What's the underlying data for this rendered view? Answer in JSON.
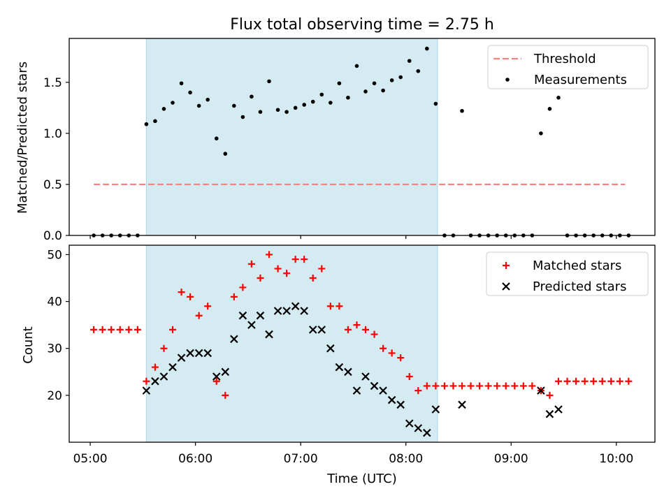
{
  "chart_data": [
    {
      "type": "scatter",
      "title": "Flux total observing time = 2.75 h",
      "xlabel": "",
      "ylabel": "Matched/Predicted stars",
      "xlim": [
        "04:48",
        "10:22"
      ],
      "ylim": [
        0,
        1.93
      ],
      "yticks": [
        "0.0",
        "0.5",
        "1.0",
        "1.5"
      ],
      "shaded_interval": [
        "05:32",
        "08:18"
      ],
      "legend": {
        "position": "top-right",
        "entries": [
          "Threshold",
          "Measurements"
        ]
      },
      "threshold": {
        "name": "Threshold",
        "y": 0.5,
        "x": [
          "05:02",
          "10:05"
        ],
        "color": "#ff7f7f",
        "style": "dashed"
      },
      "series": [
        {
          "name": "Measurements",
          "color": "#000000",
          "marker": "dot",
          "points": [
            [
              "05:02",
              0.0
            ],
            [
              "05:07",
              0.0
            ],
            [
              "05:12",
              0.0
            ],
            [
              "05:17",
              0.0
            ],
            [
              "05:22",
              0.0
            ],
            [
              "05:27",
              0.0
            ],
            [
              "05:32",
              1.09
            ],
            [
              "05:37",
              1.12
            ],
            [
              "05:42",
              1.24
            ],
            [
              "05:47",
              1.3
            ],
            [
              "05:52",
              1.49
            ],
            [
              "05:57",
              1.4
            ],
            [
              "06:02",
              1.27
            ],
            [
              "06:07",
              1.33
            ],
            [
              "06:12",
              0.95
            ],
            [
              "06:17",
              0.8
            ],
            [
              "06:22",
              1.27
            ],
            [
              "06:27",
              1.16
            ],
            [
              "06:32",
              1.36
            ],
            [
              "06:37",
              1.21
            ],
            [
              "06:42",
              1.51
            ],
            [
              "06:47",
              1.23
            ],
            [
              "06:52",
              1.21
            ],
            [
              "06:57",
              1.25
            ],
            [
              "07:02",
              1.28
            ],
            [
              "07:07",
              1.31
            ],
            [
              "07:12",
              1.38
            ],
            [
              "07:17",
              1.3
            ],
            [
              "07:22",
              1.49
            ],
            [
              "07:27",
              1.35
            ],
            [
              "07:32",
              1.66
            ],
            [
              "07:37",
              1.41
            ],
            [
              "07:42",
              1.49
            ],
            [
              "07:47",
              1.42
            ],
            [
              "07:52",
              1.52
            ],
            [
              "07:57",
              1.55
            ],
            [
              "08:02",
              1.71
            ],
            [
              "08:07",
              1.61
            ],
            [
              "08:12",
              1.83
            ],
            [
              "08:17",
              1.29
            ],
            [
              "08:22",
              0.0
            ],
            [
              "08:27",
              0.0
            ],
            [
              "08:32",
              1.22
            ],
            [
              "08:37",
              0.0
            ],
            [
              "08:42",
              0.0
            ],
            [
              "08:47",
              0.0
            ],
            [
              "08:52",
              0.0
            ],
            [
              "08:57",
              0.0
            ],
            [
              "09:02",
              0.0
            ],
            [
              "09:07",
              0.0
            ],
            [
              "09:12",
              0.0
            ],
            [
              "09:17",
              1.0
            ],
            [
              "09:22",
              1.24
            ],
            [
              "09:27",
              1.35
            ],
            [
              "09:32",
              0.0
            ],
            [
              "09:37",
              0.0
            ],
            [
              "09:42",
              0.0
            ],
            [
              "09:47",
              0.0
            ],
            [
              "09:52",
              0.0
            ],
            [
              "09:57",
              0.0
            ],
            [
              "10:02",
              0.0
            ],
            [
              "10:07",
              0.0
            ]
          ]
        }
      ]
    },
    {
      "type": "scatter",
      "title": "",
      "xlabel": "Time (UTC)",
      "ylabel": "Count",
      "xlim": [
        "04:48",
        "10:22"
      ],
      "ylim": [
        10,
        52
      ],
      "xticks": [
        "05:00",
        "06:00",
        "07:00",
        "08:00",
        "09:00",
        "10:00"
      ],
      "yticks": [
        "20",
        "30",
        "40",
        "50"
      ],
      "shaded_interval": [
        "05:32",
        "08:18"
      ],
      "legend": {
        "position": "top-right",
        "entries": [
          "Matched stars",
          "Predicted stars"
        ]
      },
      "series": [
        {
          "name": "Matched stars",
          "color": "#ff0000",
          "marker": "plus",
          "points": [
            [
              "05:02",
              34
            ],
            [
              "05:07",
              34
            ],
            [
              "05:12",
              34
            ],
            [
              "05:17",
              34
            ],
            [
              "05:22",
              34
            ],
            [
              "05:27",
              34
            ],
            [
              "05:32",
              23
            ],
            [
              "05:37",
              26
            ],
            [
              "05:42",
              30
            ],
            [
              "05:47",
              34
            ],
            [
              "05:52",
              42
            ],
            [
              "05:57",
              41
            ],
            [
              "06:02",
              37
            ],
            [
              "06:07",
              39
            ],
            [
              "06:12",
              23
            ],
            [
              "06:17",
              20
            ],
            [
              "06:22",
              41
            ],
            [
              "06:27",
              43
            ],
            [
              "06:32",
              48
            ],
            [
              "06:37",
              45
            ],
            [
              "06:42",
              50
            ],
            [
              "06:47",
              47
            ],
            [
              "06:52",
              46
            ],
            [
              "06:57",
              49
            ],
            [
              "07:02",
              49
            ],
            [
              "07:07",
              45
            ],
            [
              "07:12",
              47
            ],
            [
              "07:17",
              39
            ],
            [
              "07:22",
              39
            ],
            [
              "07:27",
              34
            ],
            [
              "07:32",
              35
            ],
            [
              "07:37",
              34
            ],
            [
              "07:42",
              33
            ],
            [
              "07:47",
              30
            ],
            [
              "07:52",
              29
            ],
            [
              "07:57",
              28
            ],
            [
              "08:02",
              24
            ],
            [
              "08:07",
              21
            ],
            [
              "08:12",
              22
            ],
            [
              "08:17",
              22
            ],
            [
              "08:22",
              22
            ],
            [
              "08:27",
              22
            ],
            [
              "08:32",
              22
            ],
            [
              "08:37",
              22
            ],
            [
              "08:42",
              22
            ],
            [
              "08:47",
              22
            ],
            [
              "08:52",
              22
            ],
            [
              "08:57",
              22
            ],
            [
              "09:02",
              22
            ],
            [
              "09:07",
              22
            ],
            [
              "09:12",
              22
            ],
            [
              "09:17",
              21
            ],
            [
              "09:22",
              20
            ],
            [
              "09:27",
              23
            ],
            [
              "09:32",
              23
            ],
            [
              "09:37",
              23
            ],
            [
              "09:42",
              23
            ],
            [
              "09:47",
              23
            ],
            [
              "09:52",
              23
            ],
            [
              "09:57",
              23
            ],
            [
              "10:02",
              23
            ],
            [
              "10:07",
              23
            ]
          ]
        },
        {
          "name": "Predicted stars",
          "color": "#000000",
          "marker": "x",
          "points": [
            [
              "05:32",
              21
            ],
            [
              "05:37",
              23
            ],
            [
              "05:42",
              24
            ],
            [
              "05:47",
              26
            ],
            [
              "05:52",
              28
            ],
            [
              "05:57",
              29
            ],
            [
              "06:02",
              29
            ],
            [
              "06:07",
              29
            ],
            [
              "06:12",
              24
            ],
            [
              "06:17",
              25
            ],
            [
              "06:22",
              32
            ],
            [
              "06:27",
              37
            ],
            [
              "06:32",
              35
            ],
            [
              "06:37",
              37
            ],
            [
              "06:42",
              33
            ],
            [
              "06:47",
              38
            ],
            [
              "06:52",
              38
            ],
            [
              "06:57",
              39
            ],
            [
              "07:02",
              38
            ],
            [
              "07:07",
              34
            ],
            [
              "07:12",
              34
            ],
            [
              "07:17",
              30
            ],
            [
              "07:22",
              26
            ],
            [
              "07:27",
              25
            ],
            [
              "07:32",
              21
            ],
            [
              "07:37",
              24
            ],
            [
              "07:42",
              22
            ],
            [
              "07:47",
              21
            ],
            [
              "07:52",
              19
            ],
            [
              "07:57",
              18
            ],
            [
              "08:02",
              14
            ],
            [
              "08:07",
              13
            ],
            [
              "08:12",
              12
            ],
            [
              "08:17",
              17
            ],
            [
              "08:32",
              18
            ],
            [
              "09:17",
              21
            ],
            [
              "09:22",
              16
            ],
            [
              "09:27",
              17
            ]
          ]
        }
      ]
    }
  ],
  "colors": {
    "shade": "#d4ebf1",
    "shade_edge": "#a9d3df",
    "axes": "#000000"
  }
}
